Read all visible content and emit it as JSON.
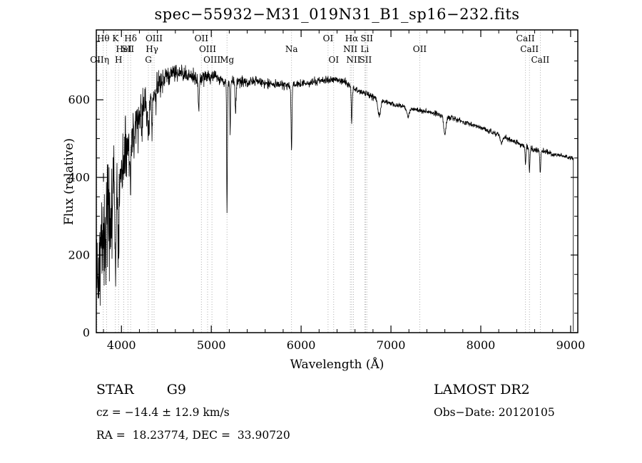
{
  "title": "spec−55932−M31_019N31_B1_sp16−232.fits",
  "footer": {
    "object_type": "STAR",
    "subclass": "G9",
    "survey": "LAMOST DR2",
    "cz": "cz = −14.4 ± 12.9 km/s",
    "obs_date": "Obs−Date: 20120105",
    "radec": "RA =  18.23774, DEC =  33.90720"
  },
  "chart_data": {
    "type": "line",
    "title": "spec−55932−M31_019N31_B1_sp16−232.fits",
    "xlabel": "Wavelength (Å)",
    "ylabel": "Flux (relative)",
    "xlim": [
      3720,
      9080
    ],
    "ylim": [
      0,
      780
    ],
    "xticks": [
      4000,
      5000,
      6000,
      7000,
      8000,
      9000
    ],
    "yticks": [
      0,
      200,
      400,
      600
    ],
    "x_minor_step": 200,
    "y_minor_step": 50,
    "grid": false,
    "legend": "none",
    "line_color": "#000000",
    "marker": {
      "wavelength": 3800,
      "flux": 400,
      "type": "plus"
    },
    "sample_step": 2.5,
    "noise_seed": 42,
    "cutoff_wavelength": 9030,
    "continuum": [
      [
        3720,
        160
      ],
      [
        3760,
        200
      ],
      [
        3800,
        250
      ],
      [
        3840,
        285
      ],
      [
        3880,
        315
      ],
      [
        3920,
        345
      ],
      [
        3960,
        375
      ],
      [
        4000,
        420
      ],
      [
        4050,
        455
      ],
      [
        4100,
        480
      ],
      [
        4150,
        525
      ],
      [
        4200,
        560
      ],
      [
        4250,
        585
      ],
      [
        4300,
        580
      ],
      [
        4350,
        610
      ],
      [
        4400,
        635
      ],
      [
        4450,
        652
      ],
      [
        4500,
        662
      ],
      [
        4550,
        668
      ],
      [
        4600,
        672
      ],
      [
        4650,
        670
      ],
      [
        4700,
        666
      ],
      [
        4750,
        662
      ],
      [
        4800,
        658
      ],
      [
        4850,
        655
      ],
      [
        4900,
        658
      ],
      [
        4950,
        660
      ],
      [
        5000,
        662
      ],
      [
        5050,
        658
      ],
      [
        5100,
        652
      ],
      [
        5150,
        648
      ],
      [
        5200,
        645
      ],
      [
        5250,
        648
      ],
      [
        5300,
        650
      ],
      [
        5350,
        646
      ],
      [
        5400,
        643
      ],
      [
        5450,
        646
      ],
      [
        5500,
        648
      ],
      [
        5550,
        645
      ],
      [
        5600,
        643
      ],
      [
        5650,
        641
      ],
      [
        5700,
        640
      ],
      [
        5750,
        639
      ],
      [
        5800,
        638
      ],
      [
        5850,
        637
      ],
      [
        5900,
        636
      ],
      [
        5950,
        638
      ],
      [
        6000,
        640
      ],
      [
        6050,
        643
      ],
      [
        6100,
        645
      ],
      [
        6150,
        647
      ],
      [
        6200,
        648
      ],
      [
        6250,
        650
      ],
      [
        6300,
        650
      ],
      [
        6350,
        651
      ],
      [
        6400,
        652
      ],
      [
        6450,
        648
      ],
      [
        6500,
        643
      ],
      [
        6550,
        636
      ],
      [
        6600,
        628
      ],
      [
        6650,
        622
      ],
      [
        6700,
        616
      ],
      [
        6750,
        612
      ],
      [
        6800,
        608
      ],
      [
        6850,
        604
      ],
      [
        6900,
        598
      ],
      [
        6950,
        594
      ],
      [
        7000,
        590
      ],
      [
        7100,
        584
      ],
      [
        7200,
        578
      ],
      [
        7300,
        574
      ],
      [
        7400,
        570
      ],
      [
        7500,
        564
      ],
      [
        7600,
        557
      ],
      [
        7700,
        551
      ],
      [
        7800,
        544
      ],
      [
        7900,
        537
      ],
      [
        8000,
        529
      ],
      [
        8100,
        519
      ],
      [
        8200,
        510
      ],
      [
        8300,
        500
      ],
      [
        8400,
        490
      ],
      [
        8500,
        480
      ],
      [
        8600,
        471
      ],
      [
        8700,
        466
      ],
      [
        8800,
        461
      ],
      [
        8900,
        456
      ],
      [
        9000,
        451
      ],
      [
        9030,
        449
      ]
    ],
    "absorption_lines": [
      [
        3933,
        250,
        5
      ],
      [
        3968,
        200,
        5
      ],
      [
        4102,
        120,
        5
      ],
      [
        4227,
        60,
        4
      ],
      [
        4300,
        70,
        9
      ],
      [
        4340,
        90,
        5
      ],
      [
        4383,
        55,
        4
      ],
      [
        4861,
        90,
        5
      ],
      [
        5175,
        345,
        4
      ],
      [
        5210,
        130,
        3.5
      ],
      [
        5270,
        80,
        6
      ],
      [
        5893,
        170,
        5
      ],
      [
        6563,
        95,
        5
      ],
      [
        6870,
        42,
        16
      ],
      [
        7190,
        22,
        12
      ],
      [
        7600,
        45,
        12
      ],
      [
        8230,
        20,
        12
      ],
      [
        8498,
        45,
        5
      ],
      [
        8542,
        62,
        5
      ],
      [
        8662,
        55,
        5
      ]
    ],
    "noise_profile": [
      [
        3720,
        115
      ],
      [
        3900,
        105
      ],
      [
        3950,
        80
      ],
      [
        4000,
        65
      ],
      [
        4100,
        55
      ],
      [
        4200,
        45
      ],
      [
        4300,
        32
      ],
      [
        4400,
        26
      ],
      [
        4500,
        22
      ],
      [
        4600,
        20
      ],
      [
        4700,
        16
      ],
      [
        4800,
        14
      ],
      [
        5000,
        12
      ],
      [
        5200,
        11
      ],
      [
        5500,
        10
      ],
      [
        5800,
        9
      ],
      [
        6000,
        8
      ],
      [
        6300,
        8
      ],
      [
        6500,
        7
      ],
      [
        6800,
        6
      ],
      [
        7000,
        5
      ],
      [
        7500,
        5
      ],
      [
        8000,
        4.5
      ],
      [
        8300,
        5
      ],
      [
        8600,
        6
      ],
      [
        9000,
        4
      ]
    ],
    "spectral_lines": [
      {
        "label": "Hθ",
        "wavelength": 3798,
        "row": 1
      },
      {
        "label": "K",
        "wavelength": 3933,
        "row": 1
      },
      {
        "label": "Hδ",
        "wavelength": 4102,
        "row": 1
      },
      {
        "label": "OIII",
        "wavelength": 4363,
        "row": 1
      },
      {
        "label": "OII",
        "wavelength": 4890,
        "row": 1
      },
      {
        "label": "OI",
        "wavelength": 6300,
        "row": 1
      },
      {
        "label": "Hα",
        "wavelength": 6563,
        "row": 1
      },
      {
        "label": "SII",
        "wavelength": 6731,
        "row": 1
      },
      {
        "label": "CaII",
        "wavelength": 8498,
        "row": 1
      },
      {
        "label": "HeI",
        "wavelength": 4026,
        "row": 2
      },
      {
        "label": "SII",
        "wavelength": 4072,
        "row": 2
      },
      {
        "label": "Hγ",
        "wavelength": 4340,
        "row": 2
      },
      {
        "label": "OIII",
        "wavelength": 4959,
        "row": 2
      },
      {
        "label": "Na",
        "wavelength": 5893,
        "row": 2
      },
      {
        "label": "NII",
        "wavelength": 6548,
        "row": 2
      },
      {
        "label": "Li",
        "wavelength": 6708,
        "row": 2
      },
      {
        "label": "OII",
        "wavelength": 7320,
        "row": 2
      },
      {
        "label": "CaII",
        "wavelength": 8542,
        "row": 2
      },
      {
        "label": "OII",
        "wavelength": 3727,
        "row": 3
      },
      {
        "label": "η",
        "wavelength": 3835,
        "row": 3
      },
      {
        "label": "H",
        "wavelength": 3968,
        "row": 3
      },
      {
        "label": "G",
        "wavelength": 4300,
        "row": 3
      },
      {
        "label": "OIII",
        "wavelength": 5007,
        "row": 3
      },
      {
        "label": "Mg",
        "wavelength": 5175,
        "row": 3
      },
      {
        "label": "OI",
        "wavelength": 6363,
        "row": 3
      },
      {
        "label": "NII",
        "wavelength": 6583,
        "row": 3
      },
      {
        "label": "SII",
        "wavelength": 6717,
        "row": 3
      },
      {
        "label": "CaII",
        "wavelength": 8662,
        "row": 3
      }
    ]
  }
}
